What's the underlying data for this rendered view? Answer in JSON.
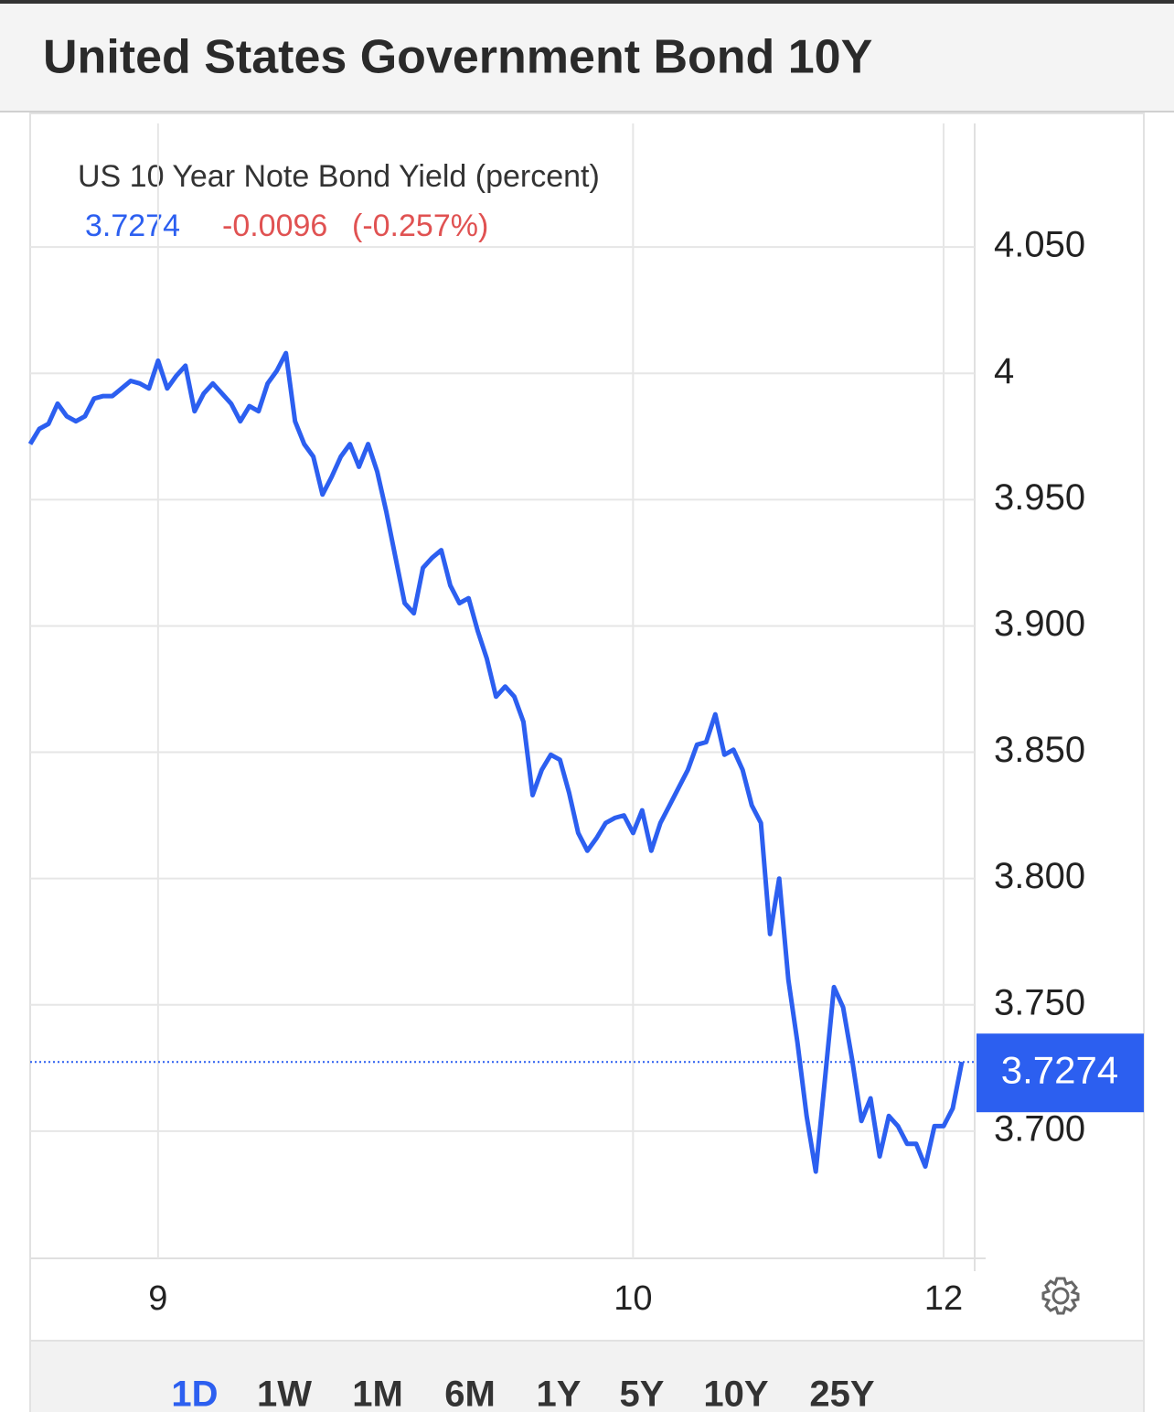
{
  "chart_data": {
    "type": "line",
    "title": "United States Government Bond 10Y",
    "subtitle": "US 10 Year Note Bond Yield (percent)",
    "last_value": 3.7274,
    "change": -0.0096,
    "change_pct_label": "(-0.257%)",
    "color": "#2c5ff0",
    "categories": [
      null,
      null,
      null,
      null,
      null,
      null,
      null,
      null,
      null,
      null,
      null,
      null,
      null,
      null,
      "9",
      null,
      null,
      null,
      null,
      null,
      null,
      null,
      null,
      null,
      null,
      null,
      null,
      null,
      null,
      null,
      null,
      null,
      null,
      null,
      null,
      null,
      null,
      null,
      null,
      null,
      null,
      null,
      null,
      null,
      null,
      null,
      null,
      null,
      null,
      null,
      null,
      null,
      null,
      null,
      null,
      null,
      null,
      null,
      null,
      null,
      null,
      null,
      null,
      null,
      null,
      null,
      "10",
      null,
      null,
      null,
      null,
      null,
      null,
      null,
      null,
      null,
      null,
      null,
      null,
      null,
      null,
      null,
      null,
      null,
      null,
      null,
      null,
      null,
      null,
      null,
      null,
      null,
      null,
      null,
      null,
      null,
      null,
      null,
      null,
      null,
      "12",
      null,
      null
    ],
    "values": [
      3.972,
      3.978,
      3.98,
      3.988,
      3.983,
      3.981,
      3.983,
      3.99,
      3.991,
      3.991,
      3.994,
      3.997,
      3.996,
      3.994,
      4.005,
      3.994,
      3.999,
      4.003,
      3.985,
      3.992,
      3.996,
      3.992,
      3.988,
      3.981,
      3.987,
      3.985,
      3.996,
      4.001,
      4.008,
      3.981,
      3.972,
      3.967,
      3.952,
      3.959,
      3.967,
      3.972,
      3.963,
      3.972,
      3.961,
      3.945,
      3.927,
      3.909,
      3.905,
      3.923,
      3.927,
      3.93,
      3.916,
      3.909,
      3.911,
      3.898,
      3.887,
      3.872,
      3.876,
      3.872,
      3.862,
      3.833,
      3.843,
      3.849,
      3.847,
      3.834,
      3.818,
      3.811,
      3.816,
      3.822,
      3.824,
      3.825,
      3.818,
      3.827,
      3.811,
      3.822,
      3.829,
      3.836,
      3.843,
      3.853,
      3.854,
      3.865,
      3.849,
      3.851,
      3.843,
      3.829,
      3.822,
      3.778,
      3.8,
      3.76,
      3.735,
      3.706,
      3.684,
      3.72,
      3.757,
      3.749,
      3.728,
      3.704,
      3.713,
      3.69,
      3.706,
      3.702,
      3.695,
      3.695,
      3.686,
      3.702,
      3.702,
      3.709,
      3.7274
    ],
    "ylim": [
      3.65,
      4.1
    ],
    "yticks": [
      {
        "value": 4.05,
        "label": "4.050"
      },
      4,
      {
        "value": 3.95,
        "label": "3.950"
      },
      {
        "value": 3.9,
        "label": "3.900"
      },
      {
        "value": 3.85,
        "label": "3.850"
      },
      {
        "value": 3.8,
        "label": "3.800"
      },
      {
        "value": 3.75,
        "label": "3.750"
      },
      {
        "value": 3.7,
        "label": "3.700"
      }
    ],
    "grid": true,
    "ranges": [
      "1D",
      "1W",
      "1M",
      "6M",
      "1Y",
      "5Y",
      "10Y",
      "25Y"
    ],
    "active_range": "1D"
  }
}
